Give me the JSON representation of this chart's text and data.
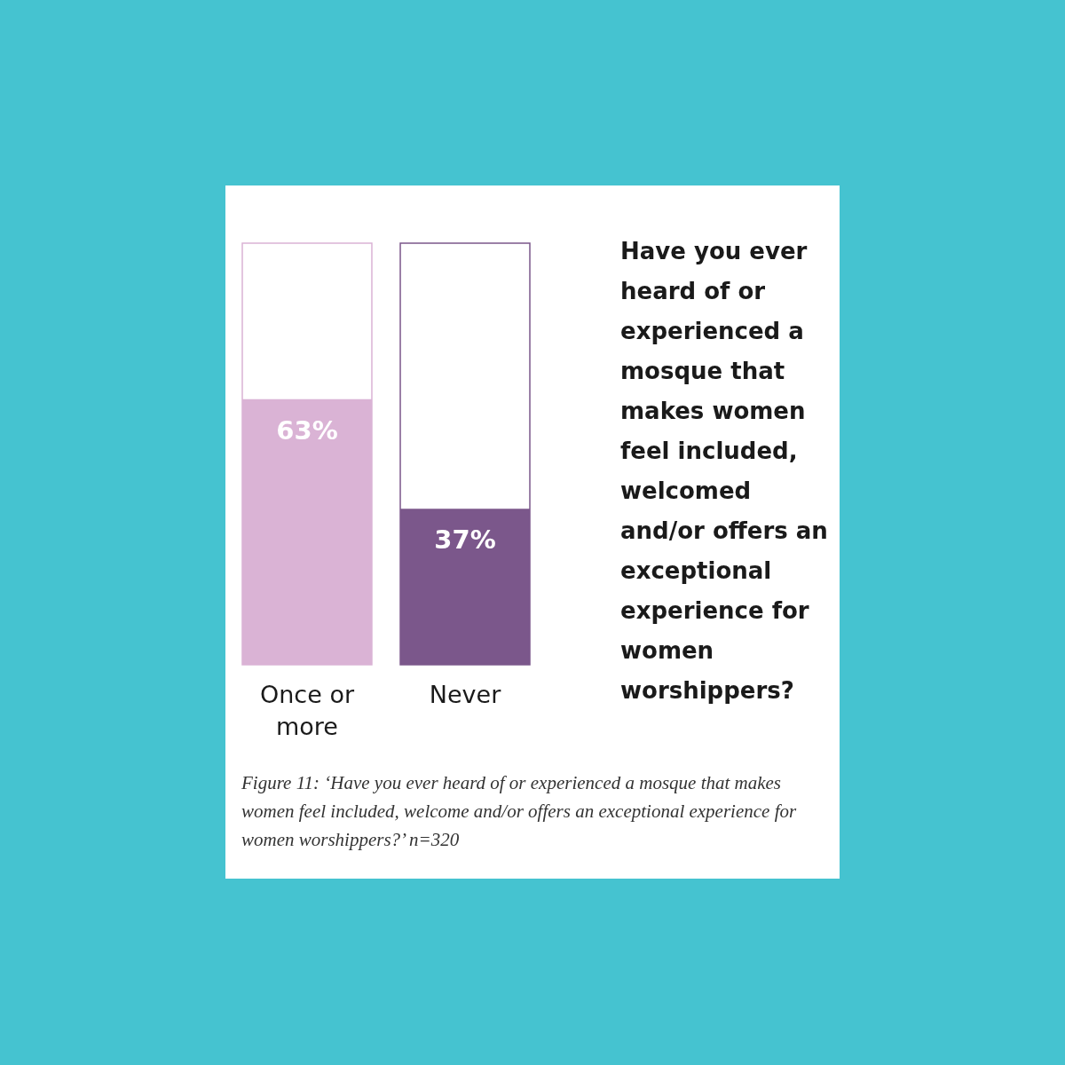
{
  "chart_data": {
    "type": "bar",
    "title": "Have you ever heard of or experienced a mosque that makes women feel included, welcomed and/or offers an exceptional experience for women worshippers?",
    "categories": [
      "Once or more",
      "Never"
    ],
    "values": [
      63,
      37
    ],
    "colors": [
      "#dab3d5",
      "#7b578b"
    ],
    "value_labels": [
      "63%",
      "37%"
    ],
    "ylim": [
      0,
      100
    ],
    "annotations": [
      "Figure 11: ‘Have you ever heard of or experienced a mosque that makes women feel included, welcome and/or offers an exceptional experience for women worshippers?’  n=320"
    ]
  }
}
